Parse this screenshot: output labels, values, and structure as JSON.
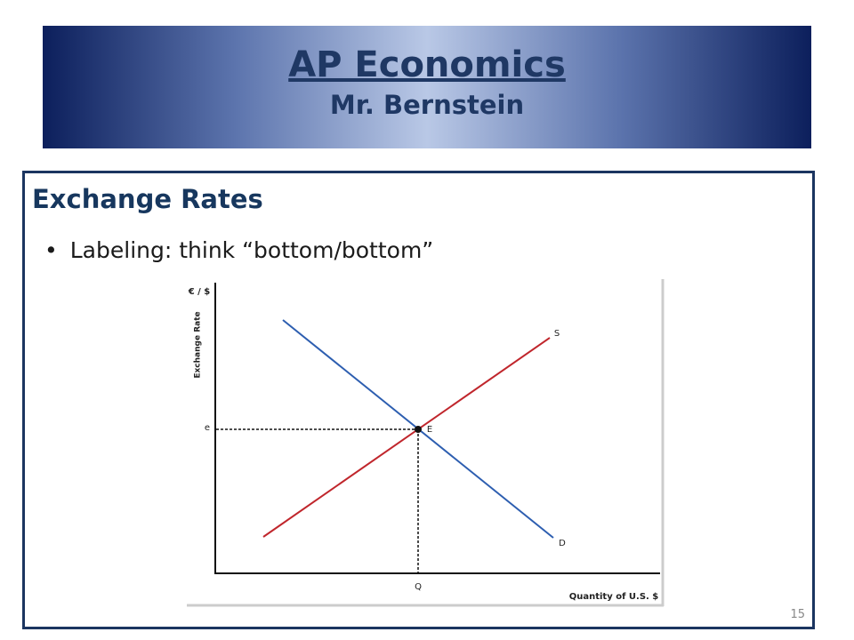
{
  "header": {
    "title": "AP Economics",
    "subtitle": "Mr. Bernstein"
  },
  "slide": {
    "heading": "Exchange Rates",
    "bullet": "Labeling:  think “bottom/bottom”",
    "page_number": "15"
  },
  "diagram": {
    "y_axis_unit": "€ / $",
    "y_axis_label": "Exchange Rate",
    "x_axis_label": "Quantity of U.S. $",
    "supply_label": "S",
    "demand_label": "D",
    "equilibrium_label": "E",
    "rate_label": "e",
    "quantity_label": "Q"
  }
}
